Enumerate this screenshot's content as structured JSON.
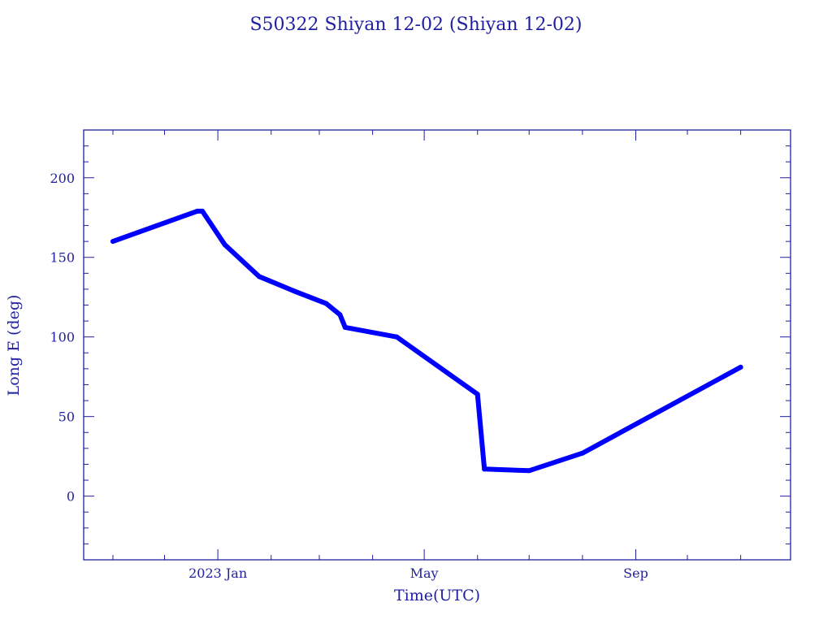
{
  "colors": {
    "axis": "#1f1fa0",
    "text": "#1f1fa0",
    "series": "#0000ff"
  },
  "chart_data": {
    "type": "line",
    "title": "S50322 Shiyan 12-02  (Shiyan 12-02)",
    "xlabel": "Time(UTC)",
    "ylabel": "Long E (deg)",
    "ylim": [
      -40,
      230
    ],
    "xlim": [
      "2022-10-15",
      "2023-11-30"
    ],
    "grid": false,
    "x_ticks": [
      {
        "date": "2023-01-01",
        "label": "2023 Jan"
      },
      {
        "date": "2023-05-01",
        "label": "May"
      },
      {
        "date": "2023-09-01",
        "label": "Sep"
      }
    ],
    "y_ticks": [
      0,
      50,
      100,
      150,
      200
    ],
    "series": [
      {
        "x": [
          "2022-11-01",
          "2022-12-20",
          "2022-12-23",
          "2023-01-05",
          "2023-01-25",
          "2023-02-14",
          "2023-03-05",
          "2023-03-13",
          "2023-03-16",
          "2023-04-15",
          "2023-06-01",
          "2023-06-05",
          "2023-07-01",
          "2023-08-01",
          "2023-11-01"
        ],
        "y": [
          160,
          179,
          179,
          158,
          138,
          129,
          121,
          114,
          106,
          100,
          64,
          17,
          16,
          27,
          81
        ]
      }
    ]
  }
}
